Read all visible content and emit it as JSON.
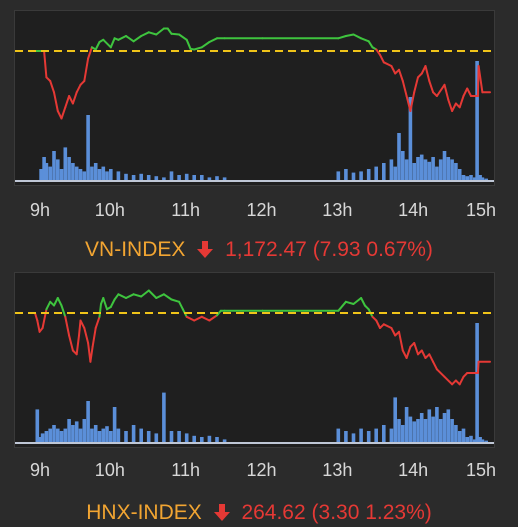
{
  "colors": {
    "up": "#3ec43e",
    "down": "#e53935",
    "reference": "#f0c419",
    "volume": "#5b8fd9",
    "title": "#f2a532"
  },
  "x_ticks": [
    "9h",
    "10h",
    "11h",
    "12h",
    "13h",
    "14h",
    "15h"
  ],
  "vn_index": {
    "name": "VN-INDEX",
    "direction_icon": "arrow-down-icon",
    "value": "1,172.47",
    "change_text": "(7.93 0.67%)"
  },
  "hnx_index": {
    "name": "HNX-INDEX",
    "direction_icon": "arrow-down-icon",
    "value": "264.62",
    "change_text": "(3.30 1.23%)"
  },
  "chart_data": [
    {
      "type": "line",
      "title": "VN-INDEX",
      "x_unit": "hour",
      "reference": 0,
      "ylim": [
        -1.2,
        0.4
      ],
      "price": [
        [
          9.0,
          0
        ],
        [
          9.12,
          0
        ],
        [
          9.15,
          -0.35
        ],
        [
          9.2,
          -0.4
        ],
        [
          9.25,
          -0.55
        ],
        [
          9.3,
          -0.8
        ],
        [
          9.35,
          -0.9
        ],
        [
          9.4,
          -0.75
        ],
        [
          9.45,
          -0.6
        ],
        [
          9.5,
          -0.7
        ],
        [
          9.55,
          -0.55
        ],
        [
          9.6,
          -0.45
        ],
        [
          9.65,
          -0.4
        ],
        [
          9.7,
          -0.1
        ],
        [
          9.75,
          0.05
        ],
        [
          9.8,
          0.02
        ],
        [
          9.85,
          0.12
        ],
        [
          9.9,
          0.15
        ],
        [
          10.0,
          0.05
        ],
        [
          10.05,
          0.17
        ],
        [
          10.1,
          0.15
        ],
        [
          10.2,
          0.2
        ],
        [
          10.3,
          0.13
        ],
        [
          10.4,
          0.2
        ],
        [
          10.5,
          0.25
        ],
        [
          10.6,
          0.22
        ],
        [
          10.7,
          0.3
        ],
        [
          10.75,
          0.3
        ],
        [
          10.8,
          0.23
        ],
        [
          10.9,
          0.22
        ],
        [
          11.0,
          0.15
        ],
        [
          11.05,
          0.03
        ],
        [
          11.1,
          0.02
        ],
        [
          11.2,
          0.05
        ],
        [
          11.3,
          0.12
        ],
        [
          11.4,
          0.17
        ],
        [
          11.5,
          0.17
        ],
        [
          12.0,
          0.17
        ],
        [
          13.0,
          0.17
        ],
        [
          13.1,
          0.2
        ],
        [
          13.2,
          0.22
        ],
        [
          13.3,
          0.17
        ],
        [
          13.4,
          0.13
        ],
        [
          13.45,
          0.05
        ],
        [
          13.5,
          0.02
        ],
        [
          13.55,
          -0.05
        ],
        [
          13.6,
          -0.15
        ],
        [
          13.7,
          -0.2
        ],
        [
          13.75,
          -0.3
        ],
        [
          13.8,
          -0.25
        ],
        [
          13.85,
          -0.4
        ],
        [
          13.9,
          -0.6
        ],
        [
          13.95,
          -0.8
        ],
        [
          14.0,
          -0.55
        ],
        [
          14.05,
          -0.35
        ],
        [
          14.1,
          -0.3
        ],
        [
          14.15,
          -0.2
        ],
        [
          14.2,
          -0.4
        ],
        [
          14.25,
          -0.55
        ],
        [
          14.3,
          -0.6
        ],
        [
          14.4,
          -0.45
        ],
        [
          14.45,
          -0.65
        ],
        [
          14.5,
          -0.8
        ],
        [
          14.55,
          -0.7
        ],
        [
          14.6,
          -0.75
        ],
        [
          14.65,
          -0.6
        ],
        [
          14.7,
          -0.5
        ],
        [
          14.75,
          -0.6
        ],
        [
          14.8,
          -0.6
        ],
        [
          14.84,
          -0.6
        ],
        [
          14.85,
          -0.2
        ],
        [
          14.9,
          -0.55
        ],
        [
          15.0,
          -0.55
        ]
      ],
      "volume": [
        [
          9.08,
          0.1
        ],
        [
          9.12,
          0.2
        ],
        [
          9.15,
          0.15
        ],
        [
          9.2,
          0.12
        ],
        [
          9.25,
          0.25
        ],
        [
          9.3,
          0.18
        ],
        [
          9.35,
          0.1
        ],
        [
          9.4,
          0.28
        ],
        [
          9.45,
          0.2
        ],
        [
          9.5,
          0.15
        ],
        [
          9.55,
          0.12
        ],
        [
          9.6,
          0.1
        ],
        [
          9.65,
          0.08
        ],
        [
          9.7,
          0.55
        ],
        [
          9.75,
          0.12
        ],
        [
          9.8,
          0.15
        ],
        [
          9.85,
          0.1
        ],
        [
          9.9,
          0.12
        ],
        [
          9.95,
          0.08
        ],
        [
          10.0,
          0.1
        ],
        [
          10.1,
          0.08
        ],
        [
          10.2,
          0.06
        ],
        [
          10.3,
          0.05
        ],
        [
          10.4,
          0.06
        ],
        [
          10.5,
          0.05
        ],
        [
          10.6,
          0.04
        ],
        [
          10.7,
          0.03
        ],
        [
          10.8,
          0.08
        ],
        [
          10.9,
          0.05
        ],
        [
          11.0,
          0.06
        ],
        [
          11.1,
          0.05
        ],
        [
          11.2,
          0.05
        ],
        [
          11.3,
          0.03
        ],
        [
          11.4,
          0.04
        ],
        [
          11.5,
          0.03
        ],
        [
          13.0,
          0.08
        ],
        [
          13.1,
          0.1
        ],
        [
          13.2,
          0.07
        ],
        [
          13.3,
          0.08
        ],
        [
          13.4,
          0.1
        ],
        [
          13.5,
          0.12
        ],
        [
          13.6,
          0.15
        ],
        [
          13.7,
          0.18
        ],
        [
          13.75,
          0.12
        ],
        [
          13.8,
          0.4
        ],
        [
          13.85,
          0.25
        ],
        [
          13.9,
          0.18
        ],
        [
          13.95,
          0.7
        ],
        [
          14.0,
          0.15
        ],
        [
          14.05,
          0.2
        ],
        [
          14.1,
          0.22
        ],
        [
          14.15,
          0.18
        ],
        [
          14.2,
          0.16
        ],
        [
          14.25,
          0.2
        ],
        [
          14.3,
          0.12
        ],
        [
          14.35,
          0.18
        ],
        [
          14.4,
          0.25
        ],
        [
          14.45,
          0.2
        ],
        [
          14.5,
          0.18
        ],
        [
          14.55,
          0.15
        ],
        [
          14.6,
          0.1
        ],
        [
          14.65,
          0.05
        ],
        [
          14.7,
          0.04
        ],
        [
          14.75,
          0.05
        ],
        [
          14.8,
          0.03
        ],
        [
          14.83,
          1.0
        ],
        [
          14.87,
          0.05
        ],
        [
          14.9,
          0.03
        ],
        [
          14.95,
          0.02
        ]
      ]
    },
    {
      "type": "line",
      "title": "HNX-INDEX",
      "x_unit": "hour",
      "reference": 0,
      "ylim": [
        -1.2,
        0.4
      ],
      "price": [
        [
          9.0,
          0
        ],
        [
          9.03,
          -0.1
        ],
        [
          9.06,
          -0.25
        ],
        [
          9.1,
          -0.2
        ],
        [
          9.15,
          0.05
        ],
        [
          9.2,
          0.15
        ],
        [
          9.25,
          0.1
        ],
        [
          9.3,
          0.2
        ],
        [
          9.35,
          0.1
        ],
        [
          9.4,
          -0.05
        ],
        [
          9.45,
          -0.3
        ],
        [
          9.5,
          -0.5
        ],
        [
          9.55,
          -0.55
        ],
        [
          9.58,
          -0.3
        ],
        [
          9.6,
          -0.1
        ],
        [
          9.65,
          -0.2
        ],
        [
          9.7,
          -0.4
        ],
        [
          9.73,
          -0.65
        ],
        [
          9.76,
          -0.45
        ],
        [
          9.8,
          -0.2
        ],
        [
          9.85,
          -0.05
        ],
        [
          9.87,
          0.12
        ],
        [
          9.9,
          0.2
        ],
        [
          9.95,
          0.05
        ],
        [
          10.0,
          0.08
        ],
        [
          10.05,
          0.18
        ],
        [
          10.1,
          0.25
        ],
        [
          10.2,
          0.2
        ],
        [
          10.3,
          0.25
        ],
        [
          10.4,
          0.22
        ],
        [
          10.5,
          0.3
        ],
        [
          10.6,
          0.2
        ],
        [
          10.7,
          0.25
        ],
        [
          10.8,
          0.18
        ],
        [
          10.9,
          0.15
        ],
        [
          10.95,
          0.05
        ],
        [
          11.0,
          -0.05
        ],
        [
          11.1,
          -0.1
        ],
        [
          11.2,
          -0.05
        ],
        [
          11.3,
          -0.1
        ],
        [
          11.4,
          -0.03
        ],
        [
          11.45,
          0.03
        ],
        [
          11.5,
          0.03
        ],
        [
          12.0,
          0.03
        ],
        [
          13.0,
          0.03
        ],
        [
          13.1,
          0.15
        ],
        [
          13.2,
          0.12
        ],
        [
          13.3,
          0.2
        ],
        [
          13.35,
          0.1
        ],
        [
          13.4,
          0.05
        ],
        [
          13.45,
          -0.05
        ],
        [
          13.5,
          -0.1
        ],
        [
          13.55,
          -0.2
        ],
        [
          13.6,
          -0.15
        ],
        [
          13.7,
          -0.2
        ],
        [
          13.75,
          -0.3
        ],
        [
          13.8,
          -0.25
        ],
        [
          13.85,
          -0.5
        ],
        [
          13.9,
          -0.6
        ],
        [
          13.95,
          -0.45
        ],
        [
          14.0,
          -0.4
        ],
        [
          14.05,
          -0.55
        ],
        [
          14.1,
          -0.5
        ],
        [
          14.15,
          -0.6
        ],
        [
          14.2,
          -0.55
        ],
        [
          14.25,
          -0.65
        ],
        [
          14.3,
          -0.75
        ],
        [
          14.4,
          -0.85
        ],
        [
          14.5,
          -0.95
        ],
        [
          14.55,
          -0.9
        ],
        [
          14.6,
          -0.95
        ],
        [
          14.65,
          -0.85
        ],
        [
          14.7,
          -0.8
        ],
        [
          14.8,
          -0.8
        ],
        [
          14.84,
          -0.8
        ],
        [
          14.85,
          -0.65
        ],
        [
          15.0,
          -0.65
        ]
      ],
      "volume": [
        [
          9.03,
          0.28
        ],
        [
          9.06,
          0.05
        ],
        [
          9.1,
          0.08
        ],
        [
          9.15,
          0.1
        ],
        [
          9.2,
          0.12
        ],
        [
          9.25,
          0.15
        ],
        [
          9.3,
          0.12
        ],
        [
          9.35,
          0.1
        ],
        [
          9.4,
          0.12
        ],
        [
          9.45,
          0.2
        ],
        [
          9.5,
          0.15
        ],
        [
          9.55,
          0.18
        ],
        [
          9.6,
          0.12
        ],
        [
          9.65,
          0.2
        ],
        [
          9.7,
          0.35
        ],
        [
          9.75,
          0.12
        ],
        [
          9.8,
          0.15
        ],
        [
          9.85,
          0.1
        ],
        [
          9.9,
          0.12
        ],
        [
          9.95,
          0.14
        ],
        [
          10.0,
          0.1
        ],
        [
          10.05,
          0.3
        ],
        [
          10.1,
          0.12
        ],
        [
          10.2,
          0.1
        ],
        [
          10.3,
          0.15
        ],
        [
          10.4,
          0.12
        ],
        [
          10.5,
          0.1
        ],
        [
          10.6,
          0.08
        ],
        [
          10.7,
          0.42
        ],
        [
          10.8,
          0.1
        ],
        [
          10.9,
          0.1
        ],
        [
          11.0,
          0.08
        ],
        [
          11.1,
          0.06
        ],
        [
          11.2,
          0.05
        ],
        [
          11.3,
          0.06
        ],
        [
          11.4,
          0.05
        ],
        [
          11.5,
          0.03
        ],
        [
          13.0,
          0.12
        ],
        [
          13.1,
          0.1
        ],
        [
          13.2,
          0.08
        ],
        [
          13.3,
          0.12
        ],
        [
          13.4,
          0.1
        ],
        [
          13.5,
          0.12
        ],
        [
          13.6,
          0.15
        ],
        [
          13.7,
          0.12
        ],
        [
          13.75,
          0.38
        ],
        [
          13.8,
          0.2
        ],
        [
          13.85,
          0.15
        ],
        [
          13.9,
          0.3
        ],
        [
          13.95,
          0.22
        ],
        [
          14.0,
          0.18
        ],
        [
          14.05,
          0.2
        ],
        [
          14.1,
          0.25
        ],
        [
          14.15,
          0.2
        ],
        [
          14.2,
          0.28
        ],
        [
          14.25,
          0.22
        ],
        [
          14.3,
          0.3
        ],
        [
          14.35,
          0.2
        ],
        [
          14.4,
          0.25
        ],
        [
          14.45,
          0.28
        ],
        [
          14.5,
          0.2
        ],
        [
          14.55,
          0.15
        ],
        [
          14.6,
          0.1
        ],
        [
          14.65,
          0.12
        ],
        [
          14.7,
          0.05
        ],
        [
          14.75,
          0.06
        ],
        [
          14.8,
          0.03
        ],
        [
          14.83,
          1.0
        ],
        [
          14.87,
          0.05
        ],
        [
          14.9,
          0.03
        ],
        [
          14.95,
          0.02
        ]
      ]
    }
  ]
}
